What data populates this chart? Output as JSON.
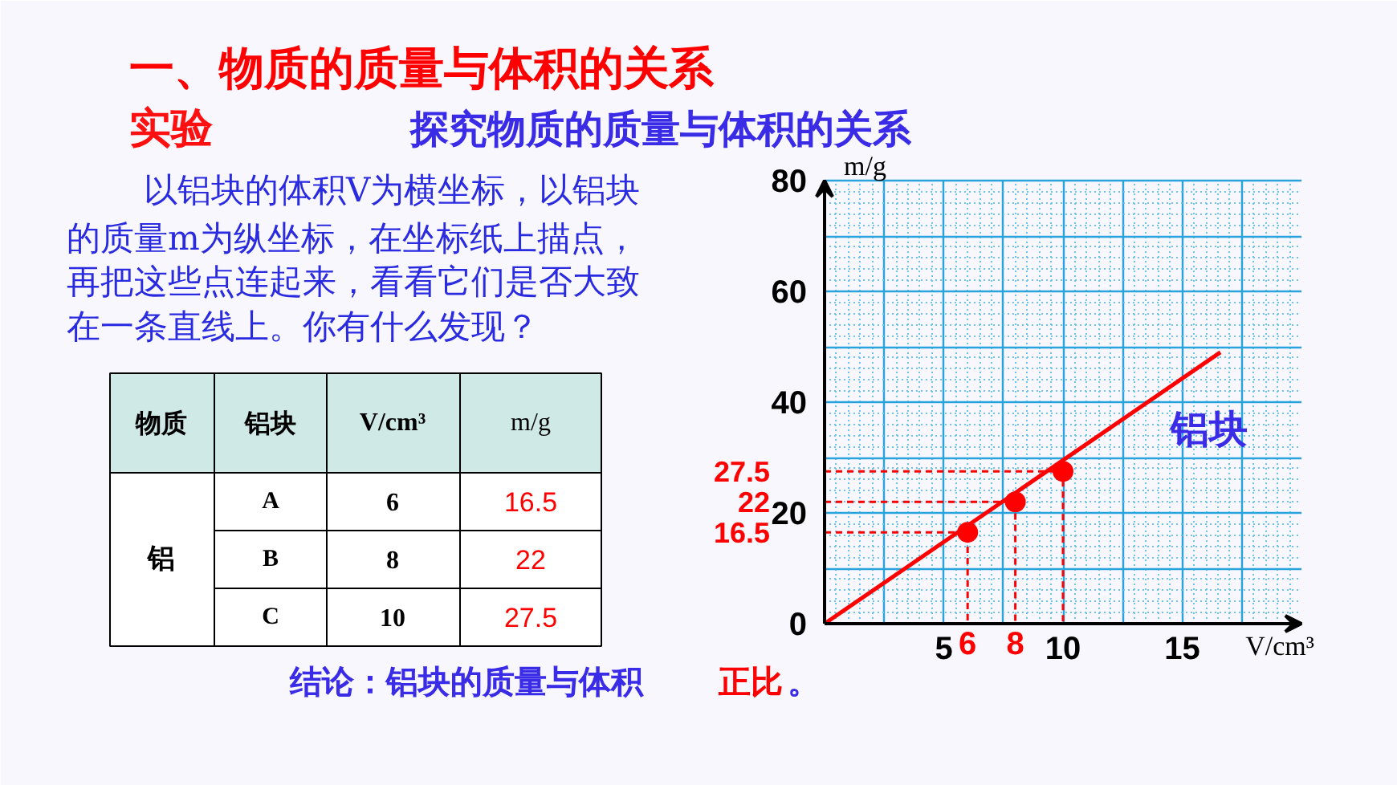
{
  "chart_data": {
    "type": "line",
    "title": "一、物质的质量与体积的关系",
    "subtitle": "探究物质的质量与体积的关系",
    "xlabel": "V/cm³",
    "ylabel": "m/g",
    "xlim": [
      0,
      20
    ],
    "ylim": [
      0,
      80
    ],
    "xticks": [
      {
        "value": 2.5,
        "label": null
      },
      5,
      {
        "value": 7.5,
        "label": null
      },
      10,
      {
        "value": 12.5,
        "label": null
      },
      15,
      {
        "value": 17.5,
        "label": null
      }
    ],
    "yticks": [
      0,
      {
        "value": 10,
        "label": null
      },
      20,
      {
        "value": 30,
        "label": null
      },
      40,
      {
        "value": 50,
        "label": null
      },
      60,
      {
        "value": 70,
        "label": null
      },
      80
    ],
    "grid": true,
    "series": [
      {
        "color": "#ff0000",
        "line_style": "dashed",
        "x": [
          0,
          6,
          6
        ],
        "values": [
          16.5,
          16.5,
          0
        ]
      },
      {
        "color": "#ff0000",
        "line_style": "dashed",
        "x": [
          0,
          8,
          8
        ],
        "values": [
          22,
          22,
          0
        ]
      },
      {
        "color": "#ff0000",
        "line_style": "dashed",
        "x": [
          0,
          10,
          10
        ],
        "values": [
          27.5,
          27.5,
          0
        ]
      },
      {
        "name": "铝块",
        "color": "#ff0000",
        "x": [
          0,
          16.6
        ],
        "values": [
          0,
          49
        ]
      },
      {
        "type": "scatter",
        "color": "#ff0000",
        "marker": "circle",
        "x": [
          6,
          8,
          10
        ],
        "values": [
          16.5,
          22,
          27.5
        ]
      }
    ],
    "annotations": [
      "实验",
      "以铝块的体积V为横坐标，以铝块",
      "的质量m为纵坐标，在坐标纸上描点，",
      "再把这些点连起来，看看它们是否大致",
      "在一条直线上。你有什么发现？",
      "物质",
      "铝块",
      "V/cm³",
      "m/g",
      "铝",
      "A",
      "6",
      "16.5",
      "B",
      "8",
      "22",
      "C",
      "10",
      "27.5",
      "结论：铝块的质量与体积",
      "正比",
      "。",
      {
        "text": "6",
        "x": 6,
        "y": 0
      },
      {
        "text": "8",
        "x": 8,
        "y": 0
      },
      {
        "text": "16.5",
        "x": 0,
        "y": 16.5
      },
      {
        "text": "22",
        "x": 0,
        "y": 22
      },
      {
        "text": "27.5",
        "x": 0,
        "y": 27.5
      }
    ]
  }
}
